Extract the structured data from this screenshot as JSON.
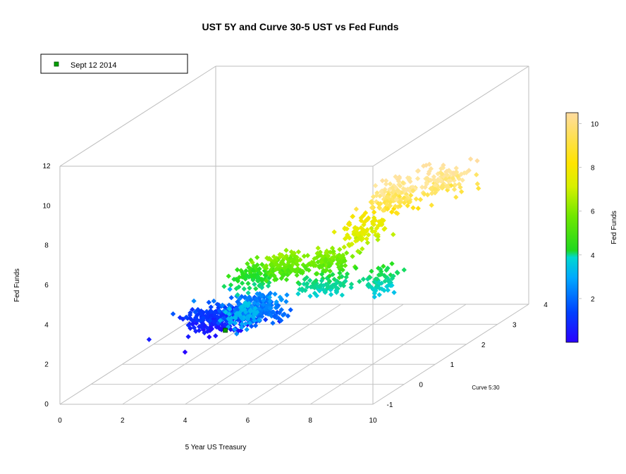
{
  "chart_data": {
    "type": "scatter3d",
    "title": "UST 5Y and Curve 30-5 UST vs Fed Funds",
    "xlabel": "5 Year US Treasury",
    "ylabel": "Curve 5:30",
    "zlabel": "Fed Funds",
    "xlim": [
      0,
      10
    ],
    "ylim": [
      -1,
      4
    ],
    "zlim": [
      0,
      12
    ],
    "x_ticks": [
      "0",
      "2",
      "4",
      "6",
      "8",
      "10"
    ],
    "y_ticks": [
      "-1",
      "0",
      "1",
      "2",
      "3",
      "4"
    ],
    "z_ticks": [
      "0",
      "2",
      "4",
      "6",
      "8",
      "10",
      "12"
    ],
    "colorbar": {
      "label": "Fed Funds",
      "ticks": [
        "2",
        "4",
        "6",
        "8",
        "10"
      ],
      "range": [
        0,
        10.5
      ]
    },
    "legend": {
      "position": "top-left",
      "entries": [
        "Sept 12 2014"
      ]
    },
    "highlight_point": {
      "label": "Sept 12 2014",
      "x": 1.7,
      "y": 2.6,
      "z": 0.1,
      "color": "#00a000"
    },
    "clusters": [
      {
        "x": 1.5,
        "y": 2.5,
        "z": 0.8,
        "sx": 1.0,
        "sy": 0.45,
        "sz": 0.6,
        "n": 200
      },
      {
        "x": 2.8,
        "y": 2.2,
        "z": 1.6,
        "sx": 0.8,
        "sy": 0.5,
        "sz": 0.6,
        "n": 160
      },
      {
        "x": 3.8,
        "y": 1.8,
        "z": 1.9,
        "sx": 0.6,
        "sy": 0.4,
        "sz": 0.5,
        "n": 100
      },
      {
        "x": 4.2,
        "y": 0.6,
        "z": 2.8,
        "sx": 0.4,
        "sy": 0.3,
        "sz": 0.6,
        "n": 60
      },
      {
        "x": 4.4,
        "y": 0.8,
        "z": 4.6,
        "sx": 0.6,
        "sy": 0.3,
        "sz": 0.6,
        "n": 90
      },
      {
        "x": 5.8,
        "y": 0.4,
        "z": 5.6,
        "sx": 0.6,
        "sy": 0.3,
        "sz": 0.6,
        "n": 120
      },
      {
        "x": 7.0,
        "y": 0.6,
        "z": 5.6,
        "sx": 0.6,
        "sy": 0.3,
        "sz": 0.5,
        "n": 90
      },
      {
        "x": 6.5,
        "y": 1.0,
        "z": 4.0,
        "sx": 0.8,
        "sy": 0.3,
        "sz": 0.5,
        "n": 80
      },
      {
        "x": 8.0,
        "y": 1.2,
        "z": 4.0,
        "sx": 0.5,
        "sy": 0.3,
        "sz": 0.8,
        "n": 60
      },
      {
        "x": 8.2,
        "y": 0.6,
        "z": 7.2,
        "sx": 0.6,
        "sy": 0.4,
        "sz": 0.8,
        "n": 90
      },
      {
        "x": 9.2,
        "y": 0.5,
        "z": 9.0,
        "sx": 0.6,
        "sy": 0.5,
        "sz": 0.7,
        "n": 120
      },
      {
        "x": 10.2,
        "y": 1.0,
        "z": 9.3,
        "sx": 0.8,
        "sy": 0.5,
        "sz": 0.7,
        "n": 120
      }
    ],
    "colormap": [
      "#2a00ff",
      "#0040ff",
      "#00a0ff",
      "#00d0e0",
      "#20e020",
      "#80ee00",
      "#e0f000",
      "#ffe000",
      "#ffe8a0",
      "#ffd9a0"
    ],
    "point_color_marker": "#00a000",
    "box_color": "#bdbdbd"
  }
}
